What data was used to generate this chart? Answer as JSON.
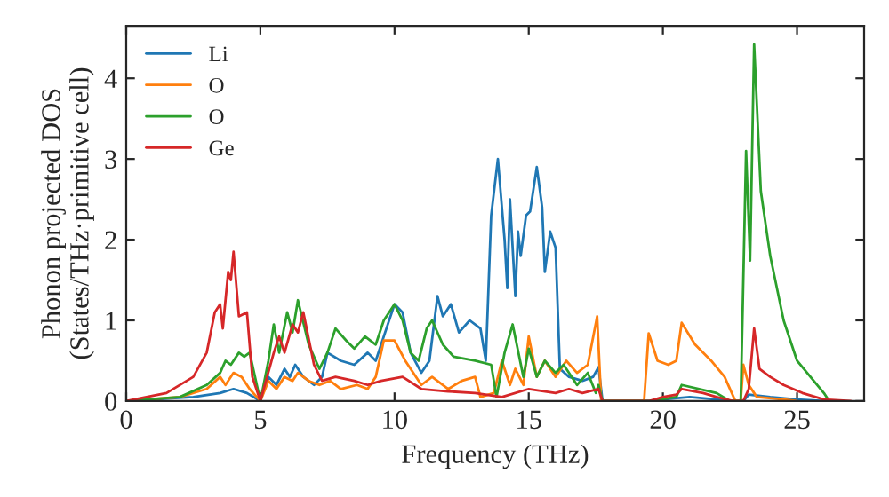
{
  "chart_data": {
    "type": "line",
    "xlabel": "Frequency (THz)",
    "ylabel": "Phonon projected DOS\n(States/THz·primitive cell)",
    "xlim": [
      0,
      27.5
    ],
    "ylim": [
      0,
      4.65
    ],
    "xticks": [
      0,
      5,
      10,
      15,
      20,
      25
    ],
    "yticks": [
      0,
      1,
      2,
      3,
      4
    ],
    "grid": false,
    "legend": "top left",
    "marker": "none",
    "line_style": "solid",
    "series": [
      {
        "name": "Li",
        "color": "#1f77b4",
        "x": [
          0,
          2.5,
          3.5,
          4,
          4.5,
          5,
          5.3,
          5.6,
          5.9,
          6.1,
          6.3,
          6.6,
          7,
          7.3,
          7.5,
          8,
          8.5,
          9,
          9.3,
          9.6,
          10,
          10.3,
          10.6,
          11,
          11.3,
          11.6,
          11.8,
          12.1,
          12.4,
          12.8,
          13.2,
          13.4,
          13.6,
          13.85,
          14.1,
          14.2,
          14.3,
          14.5,
          14.6,
          14.7,
          14.9,
          15.05,
          15.3,
          15.5,
          15.6,
          15.8,
          16.0,
          16.16,
          16.5,
          17,
          17.4,
          17.6,
          17.75,
          19.5,
          20,
          21,
          22,
          22.5,
          23,
          23.2,
          24,
          25,
          26
        ],
        "values": [
          0,
          0.05,
          0.1,
          0.15,
          0.1,
          0,
          0.3,
          0.2,
          0.4,
          0.3,
          0.45,
          0.3,
          0.2,
          0.3,
          0.6,
          0.5,
          0.45,
          0.6,
          0.5,
          0.8,
          1.2,
          1.1,
          0.6,
          0.35,
          0.5,
          1.3,
          1.05,
          1.2,
          0.85,
          1.0,
          0.9,
          0.5,
          2.3,
          3.0,
          2.0,
          1.4,
          2.5,
          1.3,
          2.1,
          1.8,
          2.3,
          2.35,
          2.9,
          2.4,
          1.6,
          2.1,
          1.9,
          0.4,
          0.3,
          0.25,
          0.3,
          0.42,
          0,
          0,
          0.02,
          0.05,
          0.02,
          0,
          0,
          0.08,
          0.05,
          0.02,
          0
        ]
      },
      {
        "name": "O",
        "color": "#ff7f0e",
        "x": [
          0,
          2,
          3,
          3.5,
          3.7,
          4,
          4.3,
          4.6,
          5,
          5.3,
          5.6,
          5.9,
          6.2,
          6.4,
          6.8,
          7.2,
          7.6,
          8,
          8.6,
          9,
          9.3,
          9.6,
          10,
          10.4,
          11,
          11.4,
          12,
          12.5,
          13,
          13.2,
          13.7,
          14.0,
          14.3,
          14.5,
          14.8,
          15.0,
          15.3,
          15.6,
          16,
          16.4,
          16.8,
          17.2,
          17.55,
          17.7,
          19.3,
          19.47,
          19.8,
          20.2,
          20.5,
          20.7,
          21.2,
          21.8,
          22.3,
          22.7,
          22.9,
          23.0,
          23.2,
          23.5,
          24.5,
          25
        ],
        "values": [
          0,
          0.05,
          0.15,
          0.3,
          0.2,
          0.35,
          0.3,
          0.15,
          0,
          0.25,
          0.15,
          0.3,
          0.25,
          0.35,
          0.25,
          0.2,
          0.25,
          0.15,
          0.2,
          0.15,
          0.3,
          0.75,
          0.75,
          0.5,
          0.2,
          0.3,
          0.15,
          0.25,
          0.3,
          0.05,
          0.1,
          0.5,
          0.2,
          0.4,
          0.2,
          0.8,
          0.3,
          0.5,
          0.3,
          0.5,
          0.35,
          0.45,
          1.05,
          0,
          0,
          0.84,
          0.5,
          0.45,
          0.5,
          0.97,
          0.7,
          0.5,
          0.3,
          0,
          0,
          0.45,
          0.2,
          0.05,
          0.02,
          0
        ]
      },
      {
        "name": "O",
        "color": "#2ca02c",
        "x": [
          0,
          2,
          3,
          3.5,
          3.7,
          3.9,
          4.2,
          4.4,
          4.6,
          5,
          5.3,
          5.5,
          5.7,
          6,
          6.2,
          6.4,
          6.8,
          7.2,
          7.5,
          7.8,
          8.2,
          8.5,
          8.9,
          9.3,
          9.6,
          10,
          10.3,
          10.6,
          10.9,
          11.2,
          11.4,
          11.8,
          12.2,
          13,
          13.6,
          13.8,
          14.1,
          14.4,
          14.8,
          15.0,
          15.3,
          15.6,
          16,
          16.3,
          16.8,
          17.2,
          17.5,
          17.6,
          17.75,
          19.5,
          20.5,
          20.7,
          22,
          22.5,
          22.9,
          23.1,
          23.25,
          23.4,
          23.65,
          24,
          24.5,
          25,
          25.5,
          26,
          26.2
        ],
        "values": [
          0,
          0.05,
          0.2,
          0.35,
          0.5,
          0.45,
          0.6,
          0.55,
          0.6,
          0,
          0.5,
          0.95,
          0.6,
          1.1,
          0.85,
          1.25,
          0.7,
          0.4,
          0.6,
          0.9,
          0.75,
          0.65,
          0.8,
          0.7,
          1.0,
          1.2,
          1.0,
          0.6,
          0.5,
          0.9,
          1.0,
          0.7,
          0.55,
          0.5,
          0.45,
          0.05,
          0.6,
          0.95,
          0.3,
          0.65,
          0.3,
          0.5,
          0.35,
          0.45,
          0.2,
          0.35,
          0.1,
          0.2,
          0,
          0,
          0.05,
          0.2,
          0.1,
          0,
          0,
          3.1,
          1.74,
          4.42,
          2.6,
          1.8,
          1.0,
          0.5,
          0.3,
          0.1,
          0
        ]
      },
      {
        "name": "Ge",
        "color": "#d62728",
        "x": [
          0,
          1.5,
          2.5,
          3,
          3.3,
          3.5,
          3.6,
          3.8,
          3.9,
          4.0,
          4.2,
          4.5,
          4.7,
          5.0,
          5.5,
          5.7,
          5.9,
          6.2,
          6.4,
          6.6,
          7,
          7.3,
          7.8,
          8.5,
          9,
          9.5,
          10.3,
          11,
          12,
          13,
          14,
          15,
          16,
          16.5,
          17,
          17.6,
          17.75,
          19.5,
          20,
          20.5,
          20.7,
          21.5,
          22,
          22.6,
          23,
          23.2,
          23.4,
          23.6,
          24,
          24.5,
          25.2,
          26,
          27
        ],
        "values": [
          0,
          0.1,
          0.3,
          0.6,
          1.1,
          1.2,
          0.9,
          1.6,
          1.5,
          1.85,
          1.05,
          1.1,
          0.3,
          0,
          0.6,
          0.8,
          0.6,
          0.95,
          0.85,
          1.1,
          0.45,
          0.25,
          0.3,
          0.25,
          0.2,
          0.25,
          0.3,
          0.15,
          0.12,
          0.1,
          0.05,
          0.15,
          0.1,
          0.15,
          0.1,
          0.15,
          0,
          0,
          0.05,
          0.08,
          0.15,
          0.1,
          0.05,
          0,
          0,
          0.15,
          0.9,
          0.4,
          0.3,
          0.2,
          0.1,
          0.02,
          0
        ]
      }
    ]
  }
}
